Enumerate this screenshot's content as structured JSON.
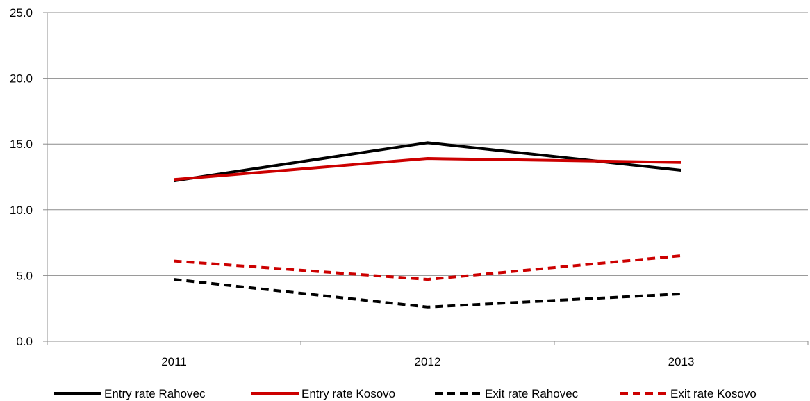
{
  "chart_data": {
    "type": "line",
    "categories": [
      "2011",
      "2012",
      "2013"
    ],
    "ylim": [
      0,
      25
    ],
    "yticks": [
      "0.0",
      "5.0",
      "10.0",
      "15.0",
      "20.0",
      "25.0"
    ],
    "grid": true,
    "legend_position": "bottom",
    "series": [
      {
        "name": "Entry rate Rahovec",
        "values": [
          12.2,
          15.1,
          13.0
        ],
        "color": "#000000",
        "dashed": false
      },
      {
        "name": "Entry rate Kosovo",
        "values": [
          12.3,
          13.9,
          13.6
        ],
        "color": "#cc0000",
        "dashed": false
      },
      {
        "name": "Exit rate Rahovec",
        "values": [
          4.7,
          2.6,
          3.6
        ],
        "color": "#000000",
        "dashed": true
      },
      {
        "name": "Exit rate Kosovo",
        "values": [
          6.1,
          4.7,
          6.5
        ],
        "color": "#cc0000",
        "dashed": true
      }
    ]
  }
}
